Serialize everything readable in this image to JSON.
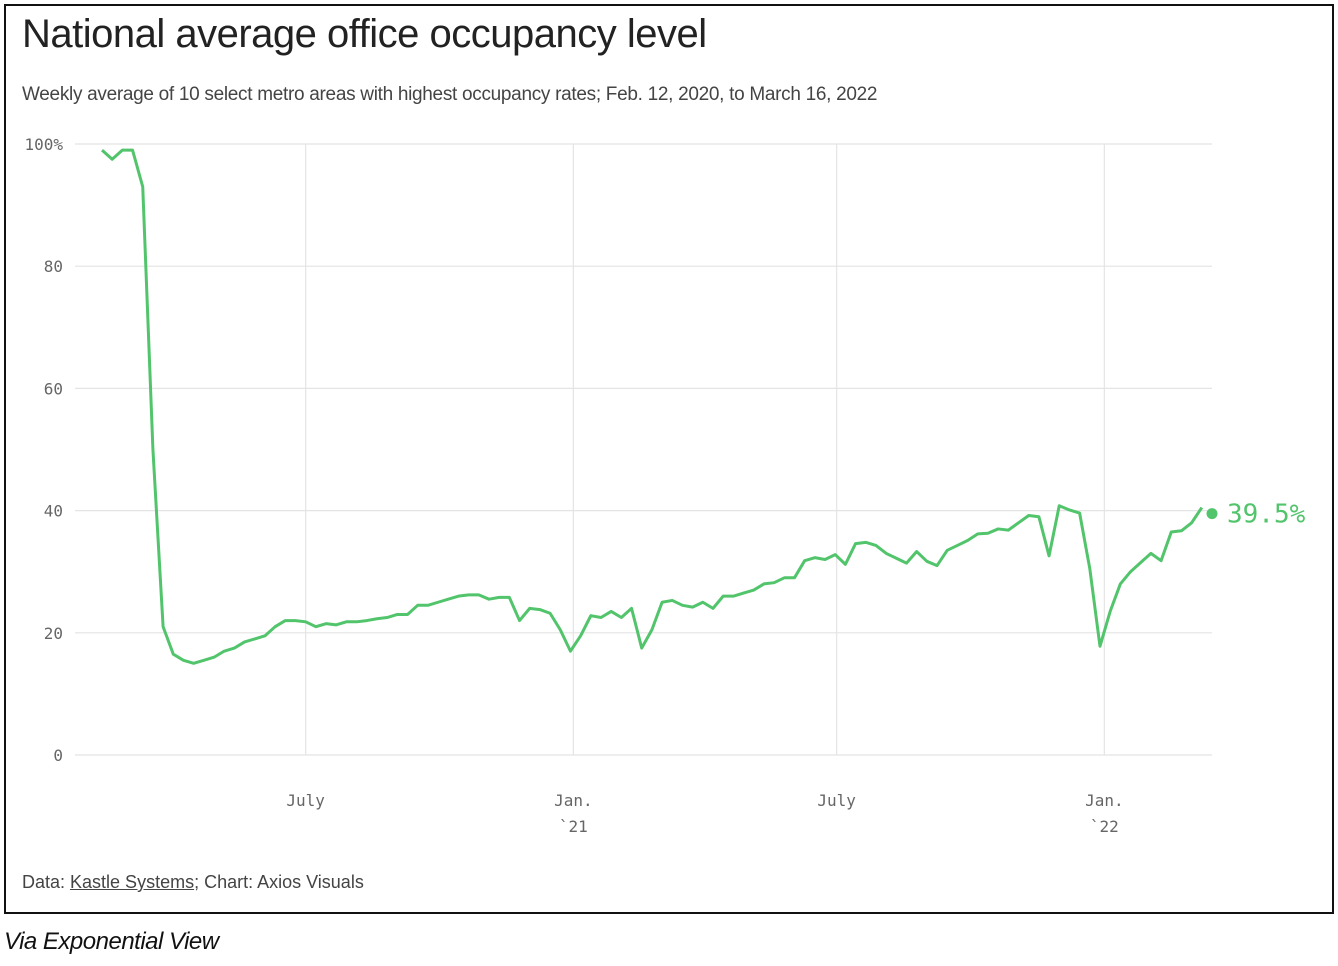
{
  "title": "National average office occupancy level",
  "subtitle": "Weekly average of 10 select metro areas with highest occupancy rates; Feb. 12, 2020, to March 16, 2022",
  "footer": {
    "prefix": "Data: ",
    "source_link": "Kastle Systems",
    "suffix": "; Chart: Axios Visuals"
  },
  "via": "Via Exponential View",
  "chart_data": {
    "type": "line",
    "title": "National average office occupancy level",
    "x_start": "2020-02-12",
    "x_end": "2022-03-16",
    "x_interval": "weekly",
    "ylim": [
      0,
      100
    ],
    "y_ticks": [
      {
        "value": 0,
        "label": "0"
      },
      {
        "value": 20,
        "label": "20"
      },
      {
        "value": 40,
        "label": "40"
      },
      {
        "value": 60,
        "label": "60"
      },
      {
        "value": 80,
        "label": "80"
      },
      {
        "value": 100,
        "label": "100%"
      }
    ],
    "x_ticks": [
      {
        "date": "2020-07-01",
        "label": "July",
        "sublabel": ""
      },
      {
        "date": "2021-01-01",
        "label": "Jan.",
        "sublabel": "`21"
      },
      {
        "date": "2021-07-01",
        "label": "July",
        "sublabel": ""
      },
      {
        "date": "2022-01-01",
        "label": "Jan.",
        "sublabel": "`22"
      }
    ],
    "grid": true,
    "color": "#52c46b",
    "end_label": "39.5%",
    "values": [
      99,
      97.5,
      99,
      99,
      93,
      50,
      21,
      16.5,
      15.5,
      15,
      15.5,
      16,
      17,
      17.5,
      18.5,
      19,
      19.5,
      21,
      22,
      22,
      21.8,
      21,
      21.5,
      21.3,
      21.8,
      21.8,
      22,
      22.3,
      22.5,
      23,
      23,
      24.5,
      24.5,
      25,
      25.5,
      26,
      26.2,
      26.2,
      25.5,
      25.8,
      25.8,
      22,
      24,
      23.8,
      23.2,
      20.5,
      17,
      19.5,
      22.8,
      22.5,
      23.5,
      22.5,
      24,
      17.5,
      20.5,
      25,
      25.3,
      24.5,
      24.2,
      25,
      24,
      26,
      26,
      26.5,
      27,
      28,
      28.2,
      29,
      29,
      31.8,
      32.3,
      32,
      32.8,
      31.2,
      34.6,
      34.8,
      34.3,
      33,
      32.2,
      31.4,
      33.3,
      31.7,
      31,
      33.5,
      34.3,
      35.1,
      36.2,
      36.3,
      37,
      36.8,
      38,
      39.2,
      39,
      32.6,
      40.8,
      40.1,
      39.6,
      30.5,
      17.8,
      23.5,
      28,
      30,
      31.5,
      33,
      31.8,
      36.5,
      36.7,
      38,
      40.5,
      39.5
    ]
  }
}
